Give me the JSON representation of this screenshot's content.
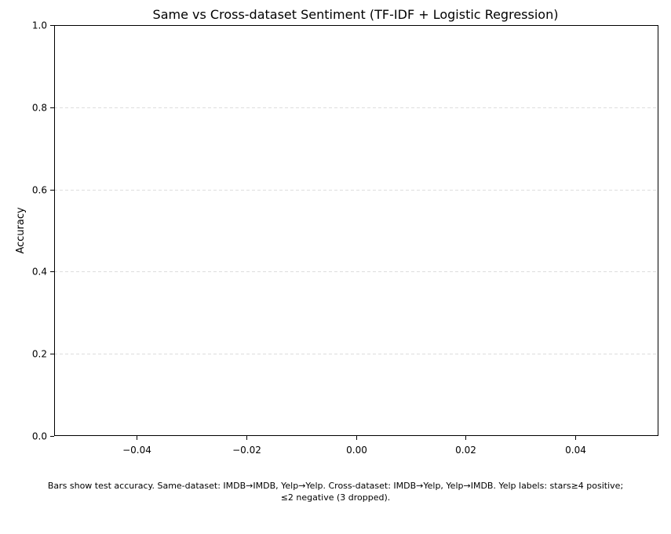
{
  "chart_data": {
    "type": "bar",
    "title": "Same vs Cross-dataset Sentiment (TF-IDF + Logistic Regression)",
    "xlabel": "",
    "ylabel": "Accuracy",
    "xlim": [
      -0.055,
      0.055
    ],
    "ylim": [
      0.0,
      1.0
    ],
    "x_ticks": [
      -0.04,
      -0.02,
      0.0,
      0.02,
      0.04
    ],
    "x_tick_labels": [
      "−0.04",
      "−0.02",
      "0.00",
      "0.02",
      "0.04"
    ],
    "y_ticks": [
      0.0,
      0.2,
      0.4,
      0.6,
      0.8,
      1.0
    ],
    "y_tick_labels": [
      "0.0",
      "0.2",
      "0.4",
      "0.6",
      "0.8",
      "1.0"
    ],
    "grid": "y-dashed",
    "categories": [],
    "series": []
  },
  "caption": {
    "line1": "Bars show test accuracy. Same-dataset: IMDB→IMDB, Yelp→Yelp. Cross-dataset: IMDB→Yelp, Yelp→IMDB. Yelp labels: stars≥4 positive;",
    "line2": "≤2 negative (3 dropped)."
  },
  "colors": {
    "axis": "#000000",
    "grid": "#dddddd",
    "background": "#ffffff"
  }
}
